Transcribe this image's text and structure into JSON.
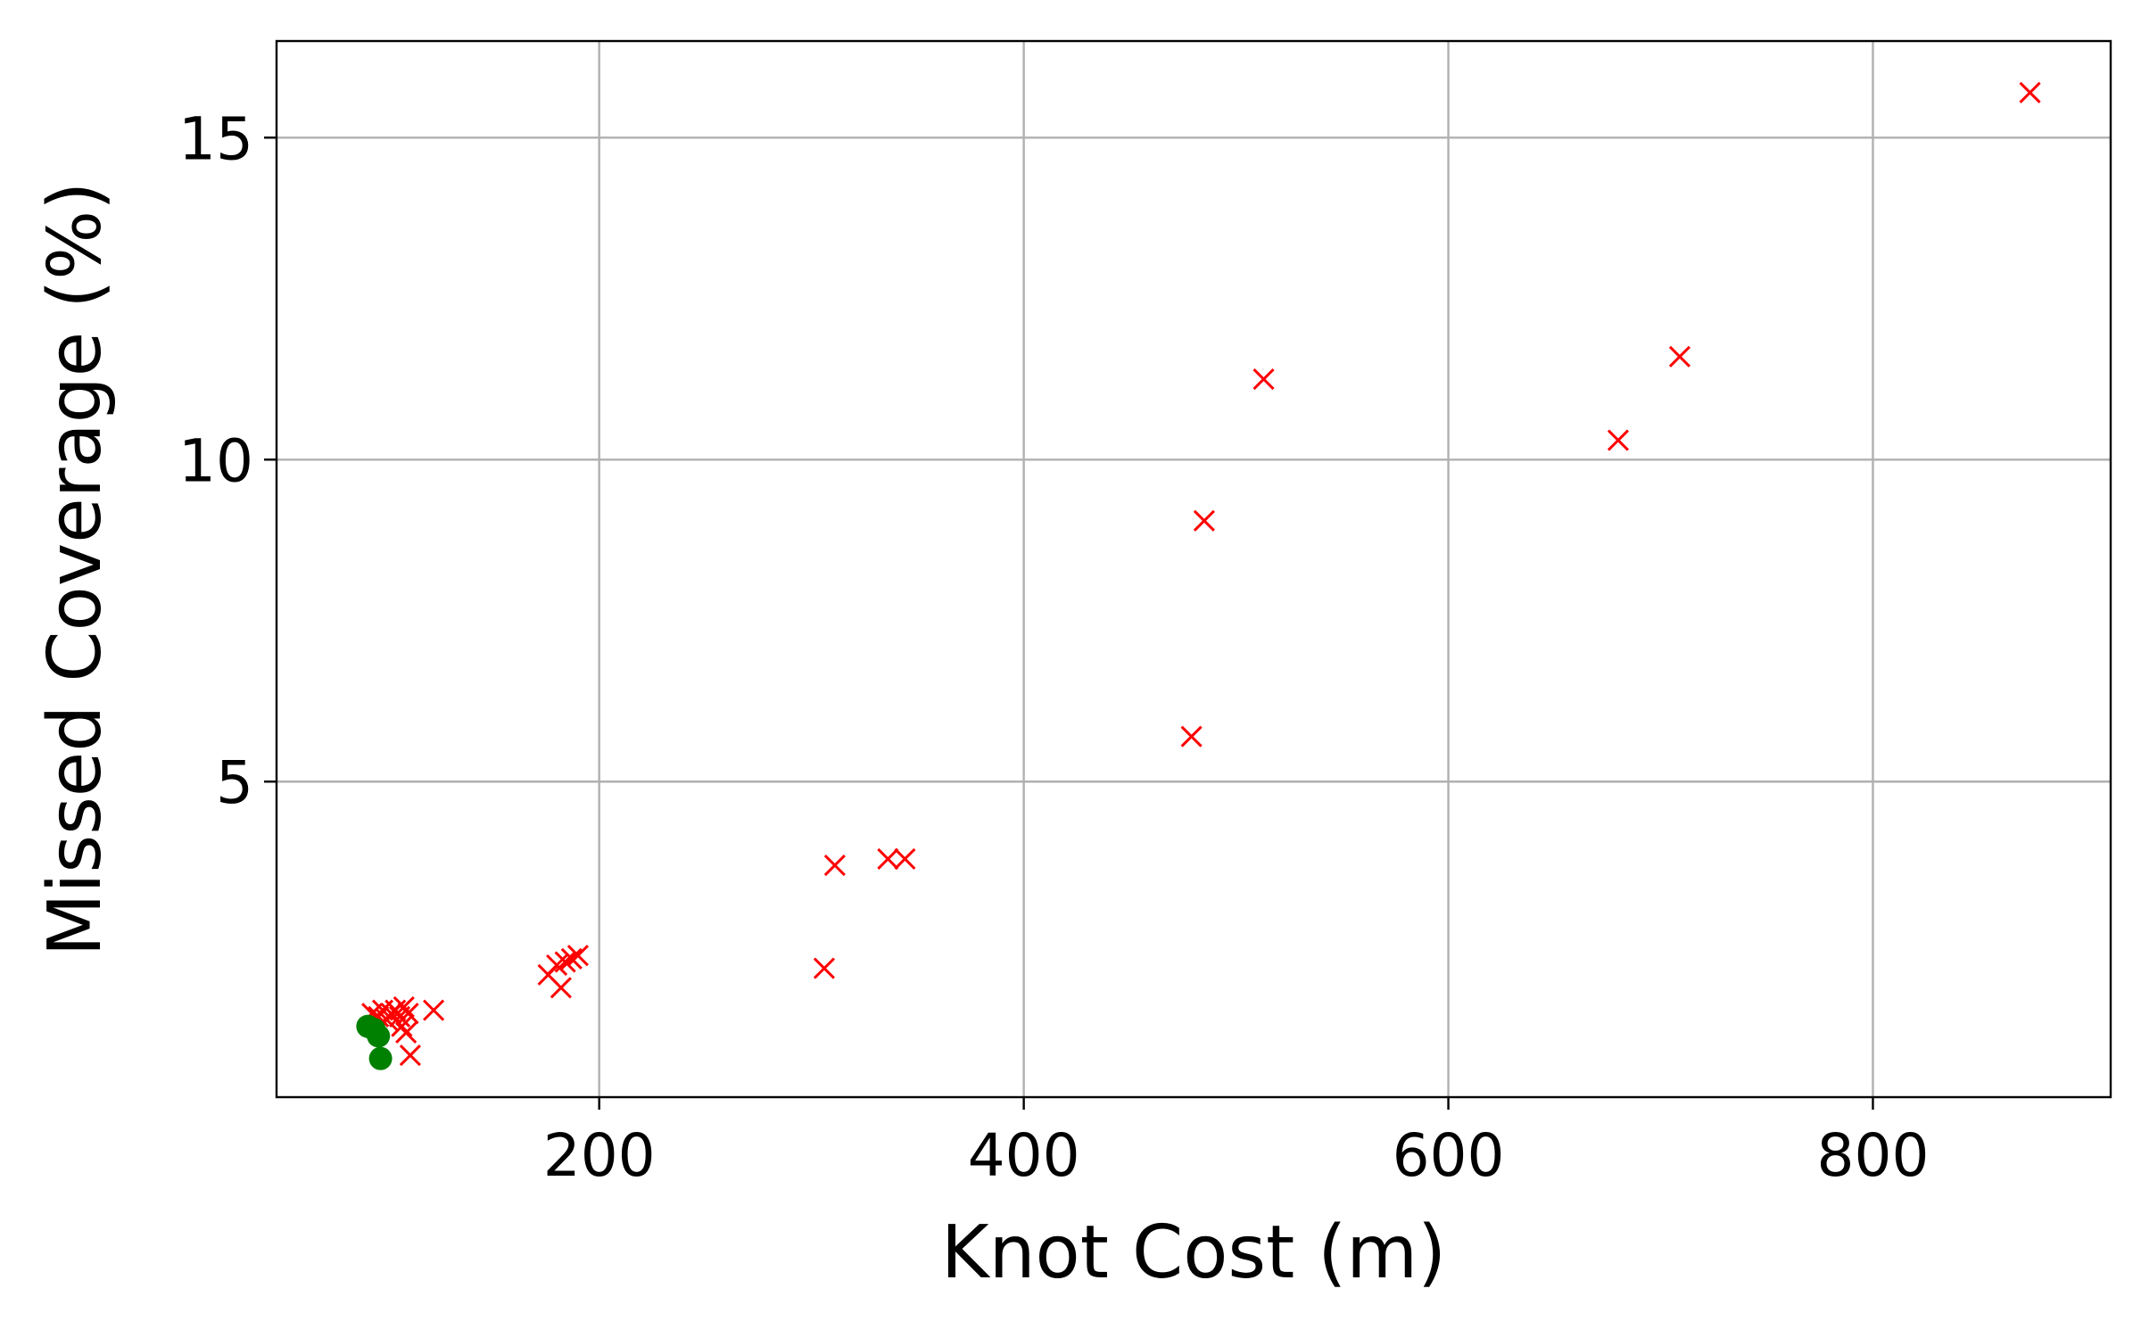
{
  "chart_data": {
    "type": "scatter",
    "title": "",
    "xlabel": "Knot Cost (m)",
    "ylabel": "Missed Coverage (%)",
    "xlim": [
      48,
      912
    ],
    "ylim": [
      0.1,
      16.5
    ],
    "xticks": [
      200,
      400,
      600,
      800
    ],
    "yticks": [
      5,
      10,
      15
    ],
    "xtick_labels": [
      "200",
      "400",
      "600",
      "800"
    ],
    "ytick_labels": [
      "5",
      "10",
      "15"
    ],
    "grid": true,
    "legend": "none",
    "series": [
      {
        "marker": "x",
        "color": "#ff0000",
        "points": [
          [
            93,
            1.4
          ],
          [
            96,
            1.35
          ],
          [
            98,
            1.45
          ],
          [
            100,
            1.3
          ],
          [
            102,
            1.4
          ],
          [
            104,
            1.45
          ],
          [
            106,
            1.35
          ],
          [
            107,
            1.2
          ],
          [
            108,
            1.5
          ],
          [
            110,
            1.4
          ],
          [
            109,
            1.1
          ],
          [
            111,
            0.75
          ],
          [
            122,
            1.45
          ],
          [
            176,
            2.0
          ],
          [
            180,
            2.15
          ],
          [
            182,
            1.8
          ],
          [
            184,
            2.2
          ],
          [
            187,
            2.25
          ],
          [
            190,
            2.3
          ],
          [
            306,
            2.1
          ],
          [
            311,
            3.7
          ],
          [
            336,
            3.8
          ],
          [
            344,
            3.8
          ],
          [
            479,
            5.7
          ],
          [
            485,
            9.05
          ],
          [
            513,
            11.25
          ],
          [
            680,
            10.3
          ],
          [
            709,
            11.6
          ],
          [
            874,
            15.7
          ]
        ]
      },
      {
        "marker": "o",
        "color": "#008000",
        "points": [
          [
            91,
            1.2
          ],
          [
            94,
            1.15
          ],
          [
            96,
            1.05
          ],
          [
            97,
            0.7
          ]
        ]
      }
    ]
  }
}
